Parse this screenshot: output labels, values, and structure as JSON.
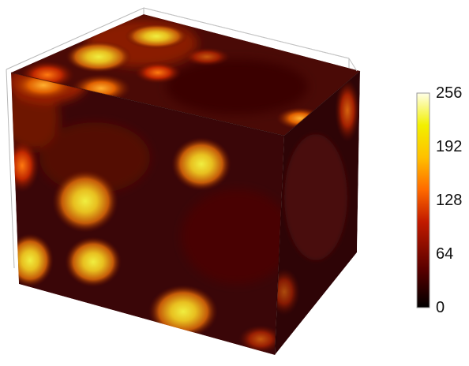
{
  "chart_data": {
    "type": "heatmap",
    "title": "",
    "xlabel": "",
    "ylabel": "",
    "zlabel": "",
    "colormap": "hot",
    "colorbar": {
      "range": [
        0,
        256
      ],
      "ticks": [
        0,
        64,
        128,
        192,
        256
      ],
      "tick_labels": [
        "0",
        "64",
        "128",
        "192",
        "256"
      ],
      "colors": [
        "#000000",
        "#5a0000",
        "#c21a00",
        "#ff6a00",
        "#ffc000",
        "#f2f000",
        "#ffffe8"
      ]
    },
    "view": "3D volume rendering of a cube with bounding box wireframe"
  }
}
